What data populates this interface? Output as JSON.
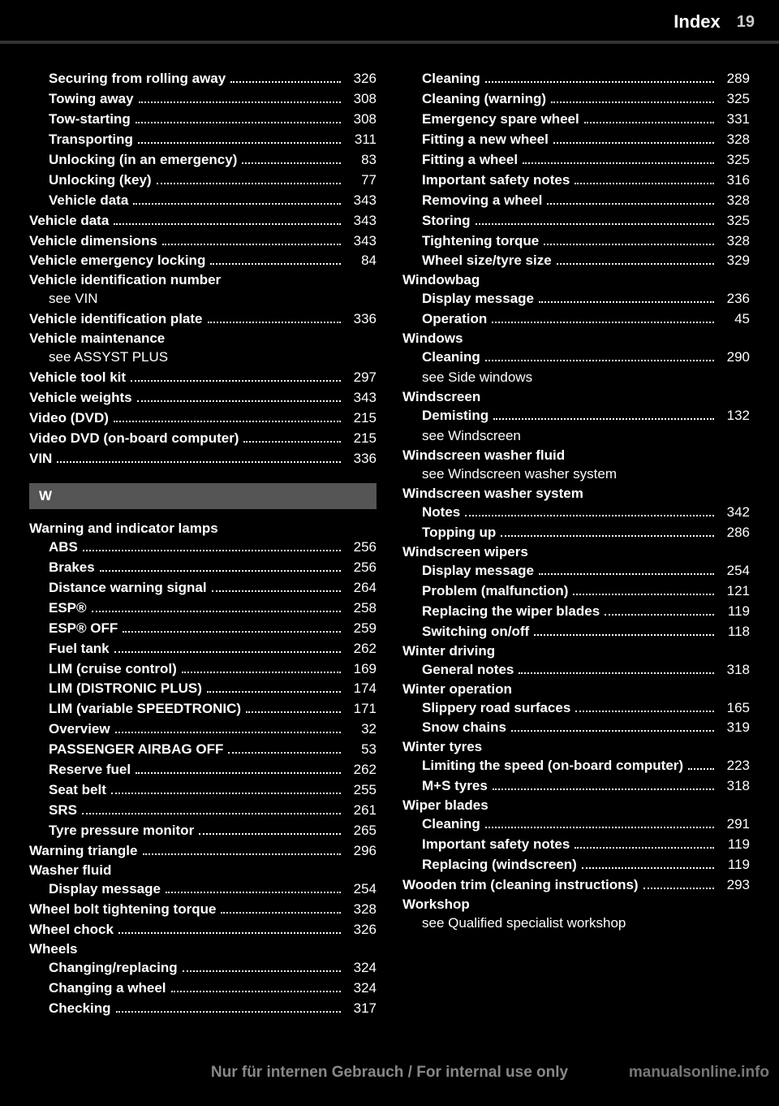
{
  "header": {
    "title": "Index",
    "page": "19"
  },
  "left": [
    {
      "indent": true,
      "label": "Securing from rolling away",
      "pg": "326"
    },
    {
      "indent": true,
      "label": "Towing away",
      "pg": "308"
    },
    {
      "indent": true,
      "label": "Tow-starting",
      "pg": "308"
    },
    {
      "indent": true,
      "label": "Transporting",
      "pg": "311"
    },
    {
      "indent": true,
      "label": "Unlocking (in an emergency)",
      "pg": "83"
    },
    {
      "indent": true,
      "label": "Unlocking (key)",
      "pg": "77"
    },
    {
      "indent": true,
      "label": "Vehicle data",
      "pg": "343"
    },
    {
      "label": "Vehicle data",
      "pg": "343"
    },
    {
      "label": "Vehicle dimensions",
      "pg": "343"
    },
    {
      "label": "Vehicle emergency locking",
      "pg": "84"
    },
    {
      "heading": true,
      "label": "Vehicle identification number"
    },
    {
      "see": true,
      "label": "see VIN"
    },
    {
      "label": "Vehicle identification plate",
      "pg": "336"
    },
    {
      "heading": true,
      "label": "Vehicle maintenance"
    },
    {
      "see": true,
      "label": "see ASSYST PLUS"
    },
    {
      "label": "Vehicle tool kit",
      "pg": "297"
    },
    {
      "label": "Vehicle weights",
      "pg": "343"
    },
    {
      "label": "Video (DVD)",
      "pg": "215"
    },
    {
      "label": "Video DVD (on-board computer)",
      "pg": "215"
    },
    {
      "label": "VIN",
      "pg": "336"
    },
    {
      "section": true,
      "label": "W"
    },
    {
      "heading": true,
      "label": "Warning and indicator lamps"
    },
    {
      "indent": true,
      "label": "ABS",
      "pg": "256"
    },
    {
      "indent": true,
      "label": "Brakes",
      "pg": "256"
    },
    {
      "indent": true,
      "label": "Distance warning signal",
      "pg": "264"
    },
    {
      "indent": true,
      "label": "ESP®",
      "pg": "258"
    },
    {
      "indent": true,
      "label": "ESP® OFF",
      "pg": "259"
    },
    {
      "indent": true,
      "label": "Fuel tank",
      "pg": "262"
    },
    {
      "indent": true,
      "label": "LIM (cruise control)",
      "pg": "169"
    },
    {
      "indent": true,
      "label": "LIM (DISTRONIC PLUS)",
      "pg": "174"
    },
    {
      "indent": true,
      "label": "LIM (variable SPEEDTRONIC)",
      "pg": "171"
    },
    {
      "indent": true,
      "label": "Overview",
      "pg": "32"
    },
    {
      "indent": true,
      "label": "PASSENGER AIRBAG OFF",
      "pg": "53"
    },
    {
      "indent": true,
      "label": "Reserve fuel",
      "pg": "262"
    },
    {
      "indent": true,
      "label": "Seat belt",
      "pg": "255"
    },
    {
      "indent": true,
      "label": "SRS",
      "pg": "261"
    },
    {
      "indent": true,
      "label": "Tyre pressure monitor",
      "pg": "265"
    },
    {
      "label": "Warning triangle",
      "pg": "296"
    },
    {
      "heading": true,
      "label": "Washer fluid"
    },
    {
      "indent": true,
      "label": "Display message",
      "pg": "254"
    },
    {
      "label": "Wheel bolt tightening torque",
      "pg": "328"
    },
    {
      "label": "Wheel chock",
      "pg": "326"
    },
    {
      "heading": true,
      "label": "Wheels"
    },
    {
      "indent": true,
      "label": "Changing/replacing",
      "pg": "324"
    },
    {
      "indent": true,
      "label": "Changing a wheel",
      "pg": "324"
    },
    {
      "indent": true,
      "label": "Checking",
      "pg": "317"
    }
  ],
  "right": [
    {
      "indent": true,
      "label": "Cleaning",
      "pg": "289"
    },
    {
      "indent": true,
      "label": "Cleaning (warning)",
      "pg": "325"
    },
    {
      "indent": true,
      "label": "Emergency spare wheel",
      "pg": "331"
    },
    {
      "indent": true,
      "label": "Fitting a new wheel",
      "pg": "328"
    },
    {
      "indent": true,
      "label": "Fitting a wheel",
      "pg": "325"
    },
    {
      "indent": true,
      "label": "Important safety notes",
      "pg": "316"
    },
    {
      "indent": true,
      "label": "Removing a wheel",
      "pg": "328"
    },
    {
      "indent": true,
      "label": "Storing",
      "pg": "325"
    },
    {
      "indent": true,
      "label": "Tightening torque",
      "pg": "328"
    },
    {
      "indent": true,
      "label": "Wheel size/tyre size",
      "pg": "329"
    },
    {
      "heading": true,
      "label": "Windowbag"
    },
    {
      "indent": true,
      "label": "Display message",
      "pg": "236"
    },
    {
      "indent": true,
      "label": "Operation",
      "pg": "45"
    },
    {
      "heading": true,
      "label": "Windows"
    },
    {
      "indent": true,
      "label": "Cleaning",
      "pg": "290"
    },
    {
      "see": true,
      "label": "see Side windows"
    },
    {
      "heading": true,
      "label": "Windscreen"
    },
    {
      "indent": true,
      "label": "Demisting",
      "pg": "132"
    },
    {
      "see": true,
      "label": "see Windscreen"
    },
    {
      "heading": true,
      "label": "Windscreen washer fluid"
    },
    {
      "see": true,
      "label": "see Windscreen washer system"
    },
    {
      "heading": true,
      "label": "Windscreen washer system"
    },
    {
      "indent": true,
      "label": "Notes",
      "pg": "342"
    },
    {
      "indent": true,
      "label": "Topping up",
      "pg": "286"
    },
    {
      "heading": true,
      "label": "Windscreen wipers"
    },
    {
      "indent": true,
      "label": "Display message",
      "pg": "254"
    },
    {
      "indent": true,
      "label": "Problem (malfunction)",
      "pg": "121"
    },
    {
      "indent": true,
      "label": "Replacing the wiper blades",
      "pg": "119"
    },
    {
      "indent": true,
      "label": "Switching on/off",
      "pg": "118"
    },
    {
      "heading": true,
      "label": "Winter driving"
    },
    {
      "indent": true,
      "label": "General notes",
      "pg": "318"
    },
    {
      "heading": true,
      "label": "Winter operation"
    },
    {
      "indent": true,
      "label": "Slippery road surfaces",
      "pg": "165"
    },
    {
      "indent": true,
      "label": "Snow chains",
      "pg": "319"
    },
    {
      "heading": true,
      "label": "Winter tyres"
    },
    {
      "indent": true,
      "label": "Limiting the speed (on-board computer)",
      "pg": "223"
    },
    {
      "indent": true,
      "label": "M+S tyres",
      "pg": "318"
    },
    {
      "heading": true,
      "label": "Wiper blades"
    },
    {
      "indent": true,
      "label": "Cleaning",
      "pg": "291"
    },
    {
      "indent": true,
      "label": "Important safety notes",
      "pg": "119"
    },
    {
      "indent": true,
      "label": "Replacing (windscreen)",
      "pg": "119"
    },
    {
      "label": "Wooden trim (cleaning instructions)",
      "pg": "293"
    },
    {
      "heading": true,
      "label": "Workshop"
    },
    {
      "see": true,
      "label": "see Qualified specialist workshop"
    }
  ],
  "footer": "Nur für internen Gebrauch / For internal use only",
  "watermark": "manualsonline.info"
}
